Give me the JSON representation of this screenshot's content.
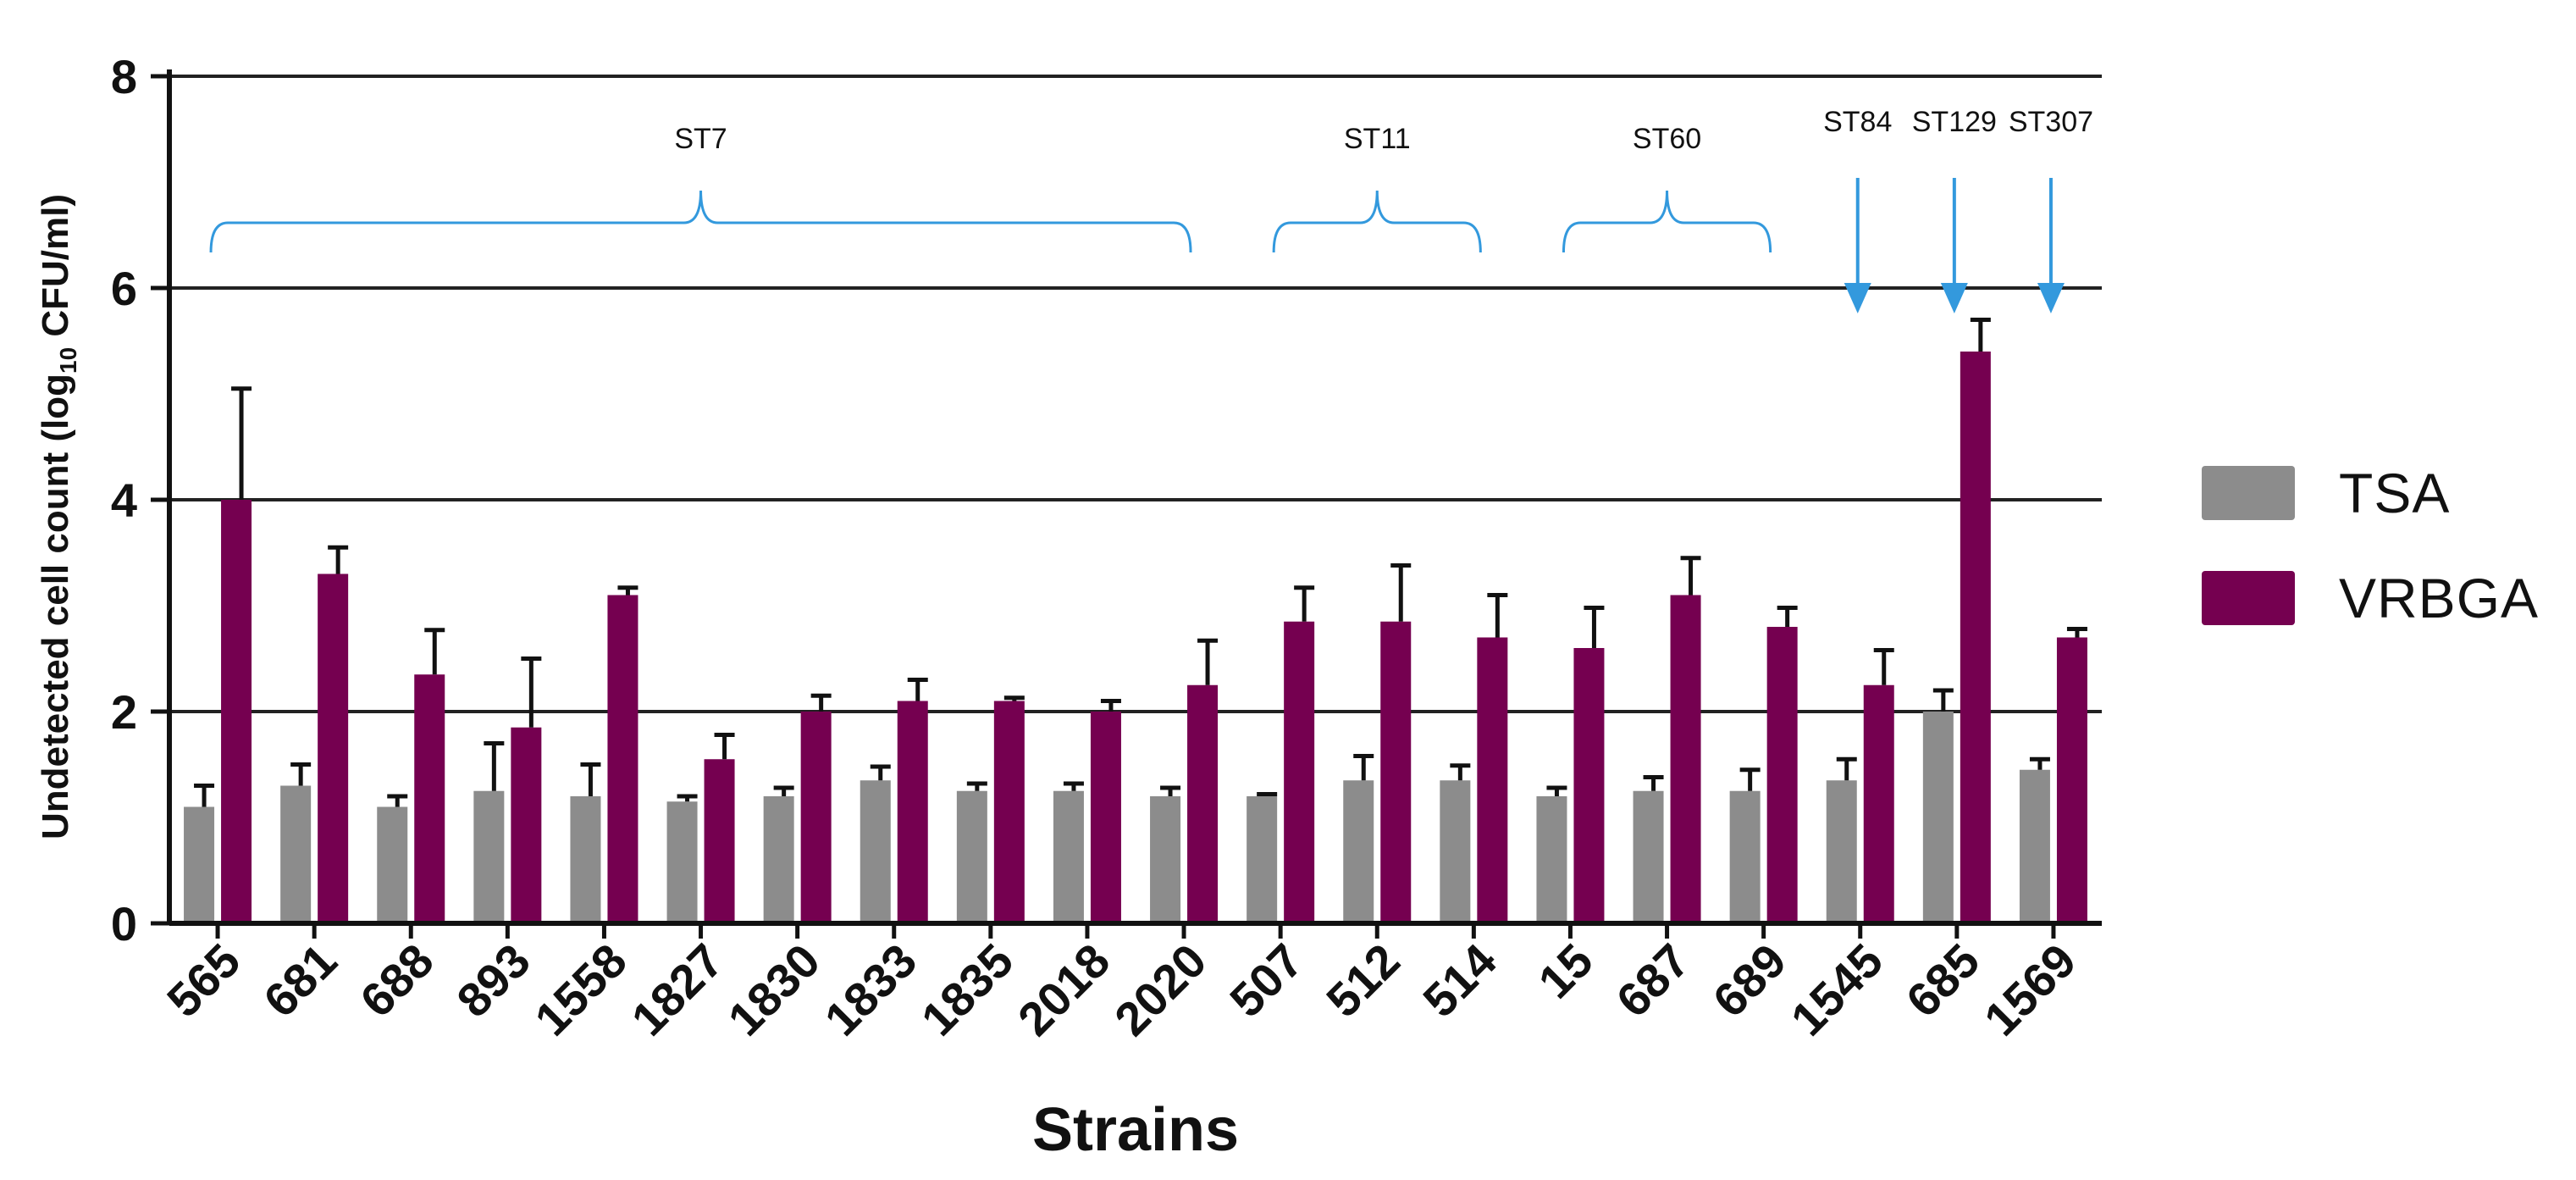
{
  "chart_data": {
    "type": "bar",
    "title": "",
    "xlabel": "Strains",
    "ylabel_parts": [
      "Undetected cell count (log",
      "10",
      " CFU/ml)"
    ],
    "ylim": [
      0,
      8
    ],
    "yticks": [
      0,
      2,
      4,
      6,
      8
    ],
    "grid": true,
    "categories": [
      "565",
      "681",
      "688",
      "893",
      "1558",
      "1827",
      "1830",
      "1833",
      "1835",
      "2018",
      "2020",
      "507",
      "512",
      "514",
      "15",
      "687",
      "689",
      "1545",
      "685",
      "1569"
    ],
    "series": [
      {
        "name": "TSA",
        "color": "#8c8c8c",
        "values": [
          1.1,
          1.3,
          1.1,
          1.25,
          1.2,
          1.15,
          1.2,
          1.35,
          1.25,
          1.25,
          1.2,
          1.2,
          1.35,
          1.35,
          1.2,
          1.25,
          1.25,
          1.35,
          2.0,
          1.45
        ],
        "errors": [
          0.2,
          0.2,
          0.1,
          0.45,
          0.3,
          0.05,
          0.08,
          0.13,
          0.07,
          0.07,
          0.08,
          0.02,
          0.23,
          0.14,
          0.08,
          0.13,
          0.2,
          0.2,
          0.2,
          0.1
        ]
      },
      {
        "name": "VRBGA",
        "color": "#750050",
        "values": [
          4.0,
          3.3,
          2.35,
          1.85,
          3.1,
          1.55,
          2.0,
          2.1,
          2.1,
          2.0,
          2.25,
          2.85,
          2.85,
          2.7,
          2.6,
          3.1,
          2.8,
          2.25,
          5.4,
          2.7
        ],
        "errors": [
          1.05,
          0.25,
          0.42,
          0.65,
          0.07,
          0.23,
          0.15,
          0.2,
          0.03,
          0.1,
          0.42,
          0.32,
          0.53,
          0.4,
          0.38,
          0.35,
          0.18,
          0.33,
          0.3,
          0.08
        ]
      }
    ],
    "annotations": [
      {
        "label": "ST7",
        "kind": "brace",
        "from": "565",
        "to": "2020"
      },
      {
        "label": "ST11",
        "kind": "brace",
        "from": "507",
        "to": "514"
      },
      {
        "label": "ST60",
        "kind": "brace",
        "from": "15",
        "to": "689"
      },
      {
        "label": "ST84",
        "kind": "arrow",
        "at": "1545"
      },
      {
        "label": "ST129",
        "kind": "arrow",
        "at": "685"
      },
      {
        "label": "ST307",
        "kind": "arrow",
        "at": "1569"
      }
    ],
    "annotation_color": "#3399dd",
    "legend_position": "right"
  }
}
